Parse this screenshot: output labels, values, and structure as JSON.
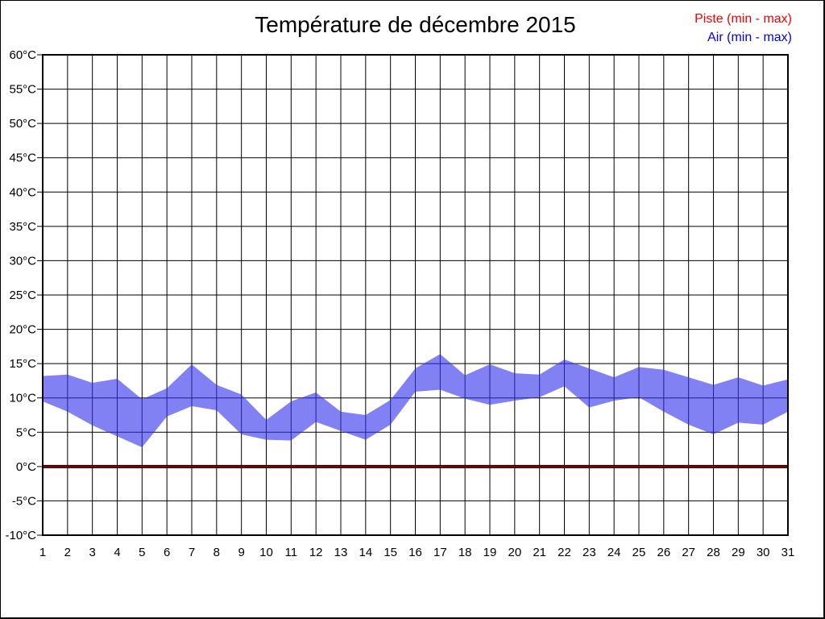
{
  "title": "Température de décembre 2015",
  "legend": [
    {
      "label": "Piste (min - max)",
      "color": "#f00000"
    },
    {
      "label": "Air (min - max)",
      "color": "#0000f0"
    }
  ],
  "colors": {
    "air_band_fill": "#3434ee",
    "air_band_opacity": 0.62,
    "piste_line": "#8b0000",
    "piste_line_edge": "#000000",
    "grid_line": "#000000",
    "background": "#ffffff"
  },
  "chart_data": {
    "type": "area",
    "title": "Température de décembre 2015",
    "xlabel": "",
    "ylabel": "",
    "y_unit": "°C",
    "ylim": [
      -10,
      60
    ],
    "y_tick_step": 5,
    "grid": true,
    "legend_position": "top-right",
    "x": [
      1,
      2,
      3,
      4,
      5,
      6,
      7,
      8,
      9,
      10,
      11,
      12,
      13,
      14,
      15,
      16,
      17,
      18,
      19,
      20,
      21,
      22,
      23,
      24,
      25,
      26,
      27,
      28,
      29,
      30,
      31
    ],
    "x_tick_labels": [
      "1",
      "2",
      "3",
      "4",
      "5",
      "6",
      "7",
      "8",
      "9",
      "10",
      "11",
      "12",
      "13",
      "14",
      "15",
      "16",
      "17",
      "18",
      "19",
      "20",
      "21",
      "22",
      "23",
      "24",
      "25",
      "26",
      "27",
      "28",
      "29",
      "30",
      "31"
    ],
    "y_tick_labels": [
      "60°C",
      "55°C",
      "50°C",
      "45°C",
      "40°C",
      "35°C",
      "30°C",
      "25°C",
      "20°C",
      "15°C",
      "10°C",
      "5°C",
      "0°C",
      "-5°C",
      "-10°C"
    ],
    "series": [
      {
        "name": "Piste (min - max)",
        "kind": "band",
        "color": "#8b0000",
        "min": [
          0,
          0,
          0,
          0,
          0,
          0,
          0,
          0,
          0,
          0,
          0,
          0,
          0,
          0,
          0,
          0,
          0,
          0,
          0,
          0,
          0,
          0,
          0,
          0,
          0,
          0,
          0,
          0,
          0,
          0,
          0
        ],
        "max": [
          0,
          0,
          0,
          0,
          0,
          0,
          0,
          0,
          0,
          0,
          0,
          0,
          0,
          0,
          0,
          0,
          0,
          0,
          0,
          0,
          0,
          0,
          0,
          0,
          0,
          0,
          0,
          0,
          0,
          0,
          0
        ]
      },
      {
        "name": "Air (min - max)",
        "kind": "band",
        "color": "#3434ee",
        "min": [
          9.5,
          8.0,
          6.0,
          4.4,
          2.8,
          7.3,
          8.8,
          8.2,
          4.7,
          3.9,
          3.8,
          6.5,
          5.2,
          3.9,
          6.1,
          10.9,
          11.2,
          9.9,
          9.0,
          9.6,
          10.1,
          11.7,
          8.6,
          9.6,
          10.1,
          8.0,
          6.1,
          4.7,
          6.4,
          6.1,
          8.0
        ],
        "max": [
          13.2,
          13.4,
          12.2,
          12.8,
          9.8,
          11.4,
          14.9,
          11.9,
          10.5,
          6.8,
          9.5,
          10.8,
          8.0,
          7.5,
          9.7,
          14.3,
          16.4,
          13.3,
          14.9,
          13.6,
          13.4,
          15.6,
          14.3,
          13.0,
          14.5,
          14.1,
          13.0,
          11.9,
          13.0,
          11.8,
          12.7
        ]
      }
    ]
  }
}
